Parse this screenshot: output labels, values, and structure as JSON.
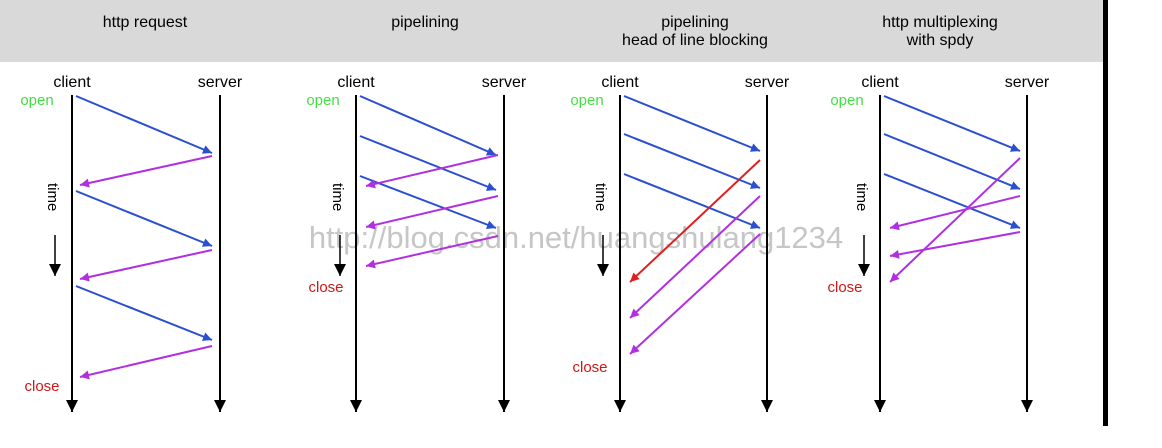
{
  "panels": [
    {
      "title_lines": [
        "http request"
      ],
      "client_label": "client",
      "server_label": "server",
      "open_label": "open",
      "time_label": "time",
      "close_label": "close"
    },
    {
      "title_lines": [
        "pipelining"
      ],
      "client_label": "client",
      "server_label": "server",
      "open_label": "open",
      "time_label": "time",
      "close_label": "close"
    },
    {
      "title_lines": [
        "pipelining",
        "head of line blocking"
      ],
      "client_label": "client",
      "server_label": "server",
      "open_label": "open",
      "time_label": "time",
      "close_label": "close"
    },
    {
      "title_lines": [
        "http multiplexing",
        "with spdy"
      ],
      "client_label": "client",
      "server_label": "server",
      "open_label": "open",
      "time_label": "time",
      "close_label": "close"
    }
  ],
  "watermark": "http://blog.csdn.net/huangshulang1234",
  "colors": {
    "header_bg": "#d9d9d9",
    "request": "#2a4fd0",
    "response": "#b030e0",
    "blocked": "#e02020",
    "open": "#44dd44",
    "close": "#d01818",
    "timeline": "#000000",
    "watermark": "#b8b8b8"
  }
}
